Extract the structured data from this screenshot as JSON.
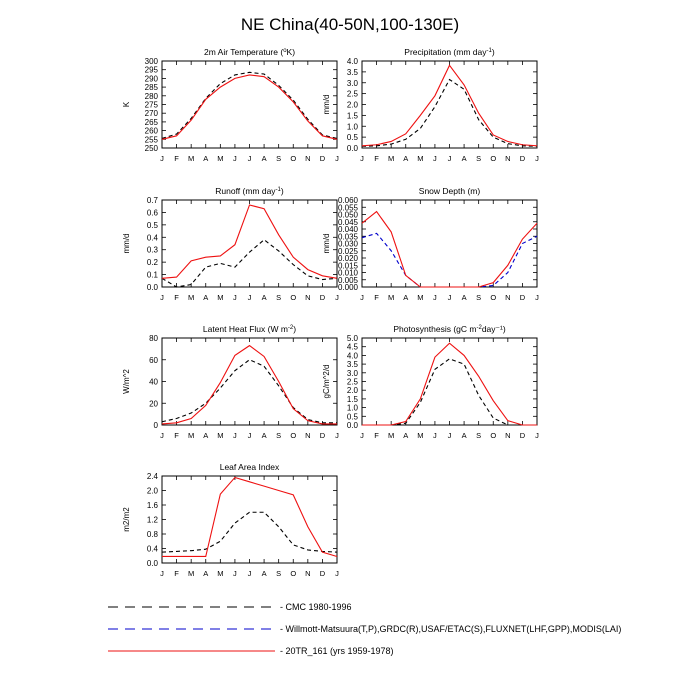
{
  "page": {
    "title": "NE China(40-50N,100-130E)"
  },
  "months": [
    "J",
    "F",
    "M",
    "A",
    "M",
    "J",
    "J",
    "A",
    "S",
    "O",
    "N",
    "D",
    "J"
  ],
  "colors": {
    "cmc": "#000000",
    "obs": "#0000cc",
    "model": "#ee1111"
  },
  "legend": [
    {
      "key": "cmc",
      "label": "CMC 1980-1996",
      "style": "dashed"
    },
    {
      "key": "obs",
      "label": "Willmott-Matsuura(T,P),GRDC(R),USAF/ETAC(S),FLUXNET(LHF,GPP),MODIS(LAI)",
      "style": "dashed"
    },
    {
      "key": "model",
      "label": "20TR_161 (yrs 1959-1978)",
      "style": "solid"
    }
  ],
  "chart_data": [
    {
      "id": "temp",
      "type": "line",
      "title": "2m Air Temperature (",
      "title_sup": "o",
      "title_end": "K)",
      "ylabel": "K",
      "ylim": [
        250,
        300
      ],
      "yticks": [
        250,
        255,
        260,
        265,
        270,
        275,
        280,
        285,
        290,
        295,
        300
      ],
      "series": [
        {
          "key": "cmc",
          "values": [
            255.5,
            258.0,
            267.0,
            278.5,
            287.0,
            292.0,
            293.5,
            292.5,
            286.0,
            277.5,
            266.5,
            257.5,
            255.5
          ]
        },
        {
          "key": "model",
          "values": [
            255.0,
            257.0,
            266.0,
            278.0,
            285.0,
            290.0,
            292.0,
            291.0,
            285.0,
            276.5,
            265.5,
            257.0,
            255.0
          ]
        }
      ]
    },
    {
      "id": "precip",
      "type": "line",
      "title": "Precipitation (mm day",
      "title_sup": "-1",
      "title_end": ")",
      "ylabel": "mm/d",
      "ylim": [
        0,
        4
      ],
      "yticks": [
        0.0,
        0.5,
        1.0,
        1.5,
        2.0,
        2.5,
        3.0,
        3.5,
        4.0
      ],
      "series": [
        {
          "key": "cmc",
          "values": [
            0.08,
            0.1,
            0.18,
            0.4,
            0.9,
            1.9,
            3.15,
            2.7,
            1.3,
            0.5,
            0.2,
            0.1,
            0.08
          ]
        },
        {
          "key": "model",
          "values": [
            0.1,
            0.15,
            0.3,
            0.65,
            1.5,
            2.4,
            3.8,
            2.9,
            1.6,
            0.6,
            0.3,
            0.15,
            0.1
          ]
        }
      ]
    },
    {
      "id": "runoff",
      "type": "line",
      "title": "Runoff (mm day",
      "title_sup": "-1",
      "title_end": ")",
      "ylabel": "mm/d",
      "ylim": [
        0,
        0.7
      ],
      "yticks": [
        0.0,
        0.1,
        0.2,
        0.3,
        0.4,
        0.5,
        0.6,
        0.7
      ],
      "series": [
        {
          "key": "cmc",
          "values": [
            0.07,
            0.0,
            0.02,
            0.16,
            0.19,
            0.16,
            0.28,
            0.38,
            0.29,
            0.18,
            0.09,
            0.06,
            0.07
          ]
        },
        {
          "key": "model",
          "values": [
            0.07,
            0.08,
            0.21,
            0.24,
            0.25,
            0.34,
            0.66,
            0.63,
            0.42,
            0.24,
            0.14,
            0.09,
            0.07
          ]
        }
      ]
    },
    {
      "id": "snow",
      "type": "line",
      "title": "Snow Depth (m)",
      "title_sup": "",
      "title_end": "",
      "ylabel": "mm/d",
      "ylim": [
        0,
        0.06
      ],
      "yticks": [
        0.0,
        0.005,
        0.01,
        0.015,
        0.02,
        0.025,
        0.03,
        0.035,
        0.04,
        0.045,
        0.05,
        0.055,
        0.06
      ],
      "series": [
        {
          "key": "obs",
          "values": [
            0.034,
            0.037,
            0.025,
            0.008,
            0.0,
            0.0,
            0.0,
            0.0,
            0.0,
            0.001,
            0.01,
            0.03,
            0.035
          ]
        },
        {
          "key": "model",
          "values": [
            0.044,
            0.052,
            0.038,
            0.008,
            0.0,
            0.0,
            0.0,
            0.0,
            0.0,
            0.003,
            0.015,
            0.033,
            0.044
          ]
        }
      ]
    },
    {
      "id": "lhf",
      "type": "line",
      "title": "Latent Heat Flux (W m",
      "title_sup": "-2",
      "title_end": ")",
      "ylabel": "W/m^2",
      "ylim": [
        0,
        80
      ],
      "yticks": [
        0,
        20,
        40,
        60,
        80
      ],
      "series": [
        {
          "key": "cmc",
          "values": [
            3,
            6,
            11,
            20,
            34,
            50,
            60,
            54,
            36,
            16,
            5,
            2,
            2
          ]
        },
        {
          "key": "model",
          "values": [
            1,
            2,
            6,
            18,
            39,
            64,
            73,
            63,
            40,
            15,
            4,
            1,
            1
          ]
        }
      ]
    },
    {
      "id": "gpp",
      "type": "line",
      "title": "Photosynthesis (gC m",
      "title_sup": "-2",
      "title_end": "day⁻¹)",
      "ylabel": "gC/m^2/d",
      "ylim": [
        0,
        5
      ],
      "yticks": [
        0.0,
        0.5,
        1.0,
        1.5,
        2.0,
        2.5,
        3.0,
        3.5,
        4.0,
        4.5,
        5.0
      ],
      "series": [
        {
          "key": "cmc",
          "values": [
            0.0,
            0.0,
            0.0,
            0.1,
            1.3,
            3.2,
            3.8,
            3.5,
            1.7,
            0.4,
            0.0,
            0.0,
            0.0
          ]
        },
        {
          "key": "model",
          "values": [
            0.0,
            0.0,
            0.0,
            0.2,
            1.5,
            3.9,
            4.7,
            4.0,
            2.8,
            1.4,
            0.25,
            0.0,
            0.0
          ]
        }
      ]
    },
    {
      "id": "lai",
      "type": "line",
      "title": "Leaf Area Index",
      "title_sup": "",
      "title_end": "",
      "ylabel": "m2/m2",
      "ylim": [
        0,
        2.4
      ],
      "yticks": [
        0.0,
        0.4,
        0.8,
        1.2,
        1.6,
        2.0,
        2.4
      ],
      "series": [
        {
          "key": "cmc",
          "values": [
            0.3,
            0.32,
            0.34,
            0.38,
            0.6,
            1.1,
            1.4,
            1.4,
            1.0,
            0.5,
            0.36,
            0.32,
            0.3
          ]
        },
        {
          "key": "model",
          "values": [
            0.18,
            0.18,
            0.18,
            0.18,
            1.9,
            2.36,
            2.24,
            2.12,
            2.0,
            1.88,
            1.0,
            0.3,
            0.18
          ]
        }
      ]
    }
  ]
}
